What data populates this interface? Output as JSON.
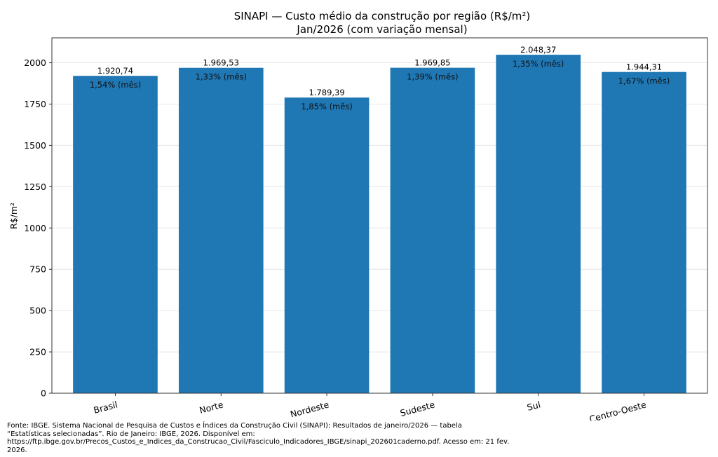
{
  "chart_data": {
    "type": "bar",
    "title": "SINAPI — Custo médio da construção por região (R$/m²)",
    "subtitle": "Jan/2026 (com variação mensal)",
    "xlabel": "",
    "ylabel": "R$/m²",
    "categories": [
      "Brasil",
      "Norte",
      "Nordeste",
      "Sudeste",
      "Sul",
      "Centro-Oeste"
    ],
    "values": [
      1920.74,
      1969.53,
      1789.39,
      1969.85,
      2048.37,
      1944.31
    ],
    "value_labels": [
      "1.920,74",
      "1.969,53",
      "1.789,39",
      "1.969,85",
      "2.048,37",
      "1.944,31"
    ],
    "monthly_variation_labels": [
      "1,54% (mês)",
      "1,33% (mês)",
      "1,85% (mês)",
      "1,39% (mês)",
      "1,35% (mês)",
      "1,67% (mês)"
    ],
    "monthly_variation_pct": [
      1.54,
      1.33,
      1.85,
      1.39,
      1.35,
      1.67
    ],
    "ylim": [
      0,
      2150.79
    ],
    "yticks": [
      0,
      250,
      500,
      750,
      1000,
      1250,
      1500,
      1750,
      2000
    ],
    "grid": "y",
    "bar_color": "#1f77b4",
    "xtick_rotation_deg": 15
  },
  "footnote": "Fonte: IBGE. Sistema Nacional de Pesquisa de Custos e Índices da Construção Civil (SINAPI): Resultados de janeiro/2026 — tabela\n“Estatísticas selecionadas”. Rio de Janeiro: IBGE, 2026. Disponível em:\nhttps://ftp.ibge.gov.br/Precos_Custos_e_Indices_da_Construcao_Civil/Fasciculo_Indicadores_IBGE/sinapi_202601caderno.pdf. Acesso em: 21 fev.\n2026."
}
